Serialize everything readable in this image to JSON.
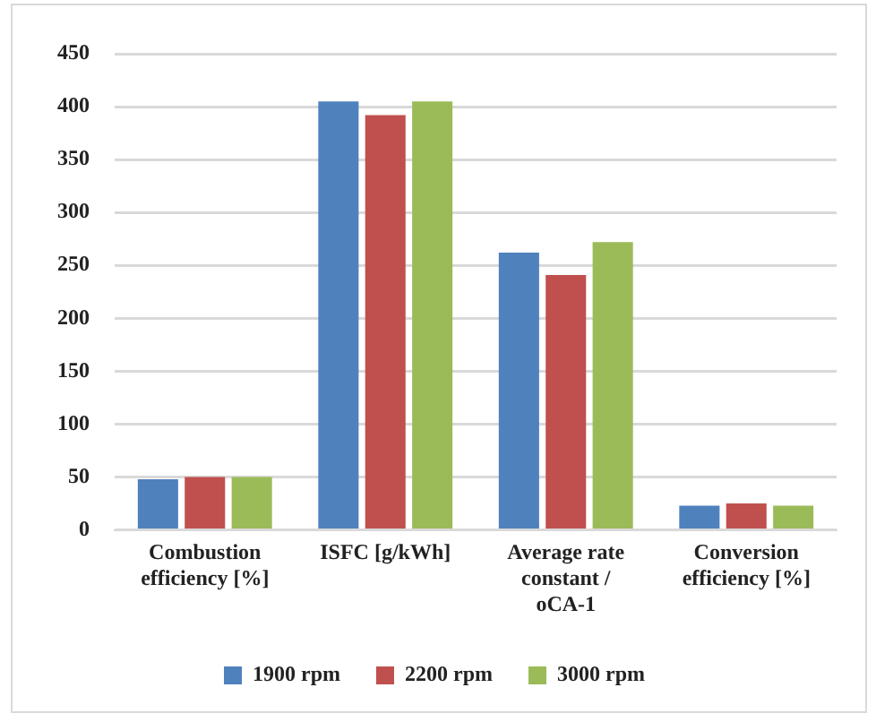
{
  "chart_data": {
    "type": "bar",
    "categories": [
      "Combustion efficiency [%]",
      "ISFC [g/kWh]",
      "Average rate constant / oCA-1",
      "Conversion efficiency [%]"
    ],
    "series": [
      {
        "name": "1900 rpm",
        "color": "#4f81bd",
        "values": [
          48,
          405,
          262,
          23
        ]
      },
      {
        "name": "2200 rpm",
        "color": "#c0504d",
        "values": [
          50,
          392,
          241,
          25
        ]
      },
      {
        "name": "3000 rpm",
        "color": "#9bbb59",
        "values": [
          50,
          405,
          272,
          23
        ]
      }
    ],
    "ylim": [
      0,
      450
    ],
    "yticks": [
      0,
      50,
      100,
      150,
      200,
      250,
      300,
      350,
      400,
      450
    ],
    "grid": "y",
    "legend": "bottom"
  }
}
